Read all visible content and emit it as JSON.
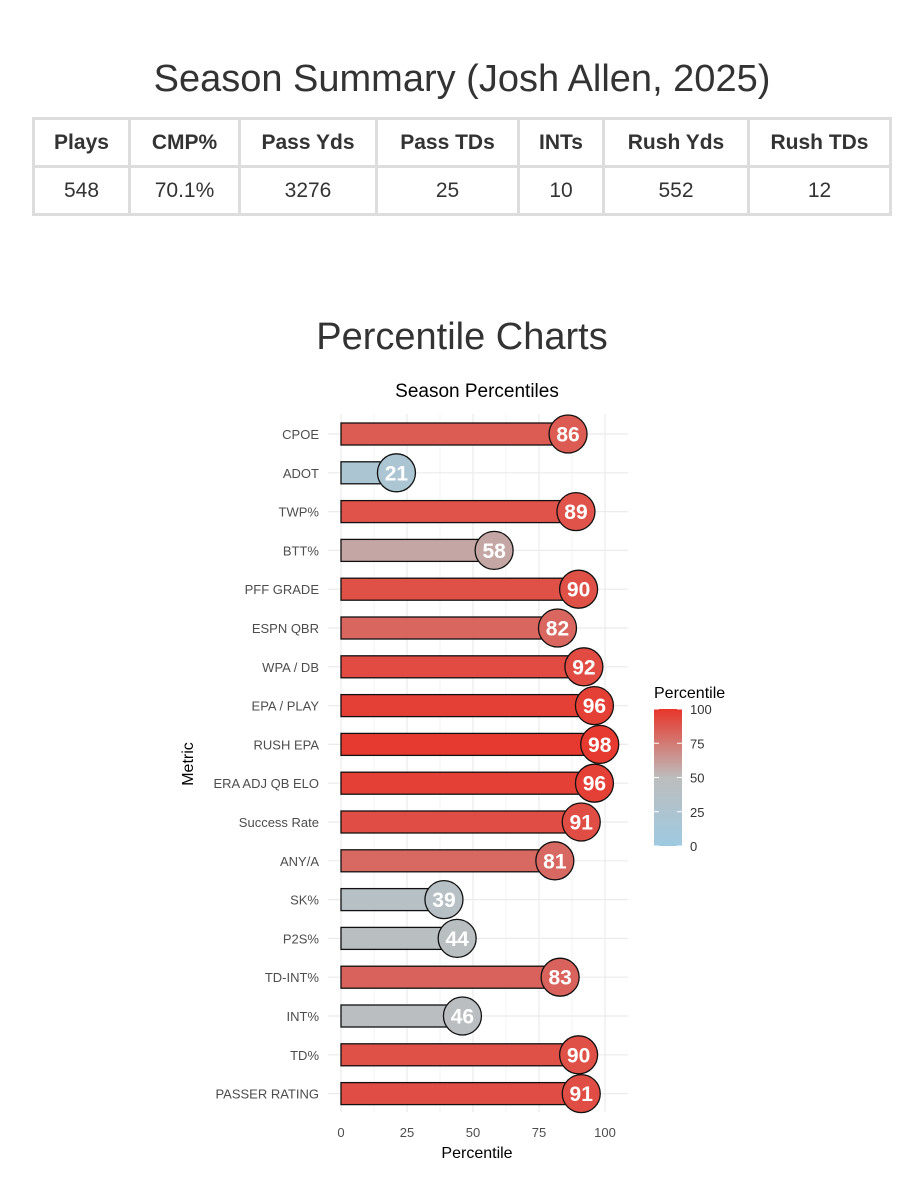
{
  "summary": {
    "title": "Season Summary (Josh Allen, 2025)",
    "headers": [
      "Plays",
      "CMP%",
      "Pass Yds",
      "Pass TDs",
      "INTs",
      "Rush Yds",
      "Rush TDs"
    ],
    "values": [
      "548",
      "70.1%",
      "3276",
      "25",
      "10",
      "552",
      "12"
    ]
  },
  "charts_heading": "Percentile Charts",
  "chart_data": {
    "type": "bar",
    "orientation": "horizontal",
    "title": "Season Percentiles",
    "xlabel": "Percentile",
    "ylabel": "Metric",
    "xlim": [
      0,
      100
    ],
    "xticks": [
      0,
      25,
      50,
      75,
      100
    ],
    "grid": true,
    "categories": [
      "CPOE",
      "ADOT",
      "TWP%",
      "BTT%",
      "PFF GRADE",
      "ESPN QBR",
      "WPA / DB",
      "EPA / PLAY",
      "RUSH EPA",
      "ERA ADJ QB ELO",
      "Success Rate",
      "ANY/A",
      "SK%",
      "P2S%",
      "TD-INT%",
      "INT%",
      "TD%",
      "PASSER RATING"
    ],
    "values": [
      86,
      21,
      89,
      58,
      90,
      82,
      92,
      96,
      98,
      96,
      91,
      81,
      39,
      44,
      83,
      46,
      90,
      91
    ],
    "legend": {
      "title": "Percentile",
      "position": "right",
      "ticks": [
        0,
        25,
        50,
        75,
        100
      ],
      "colors": {
        "low": "#9ecae1",
        "mid": "#bdbdbd",
        "high": "#e8352a"
      }
    }
  }
}
